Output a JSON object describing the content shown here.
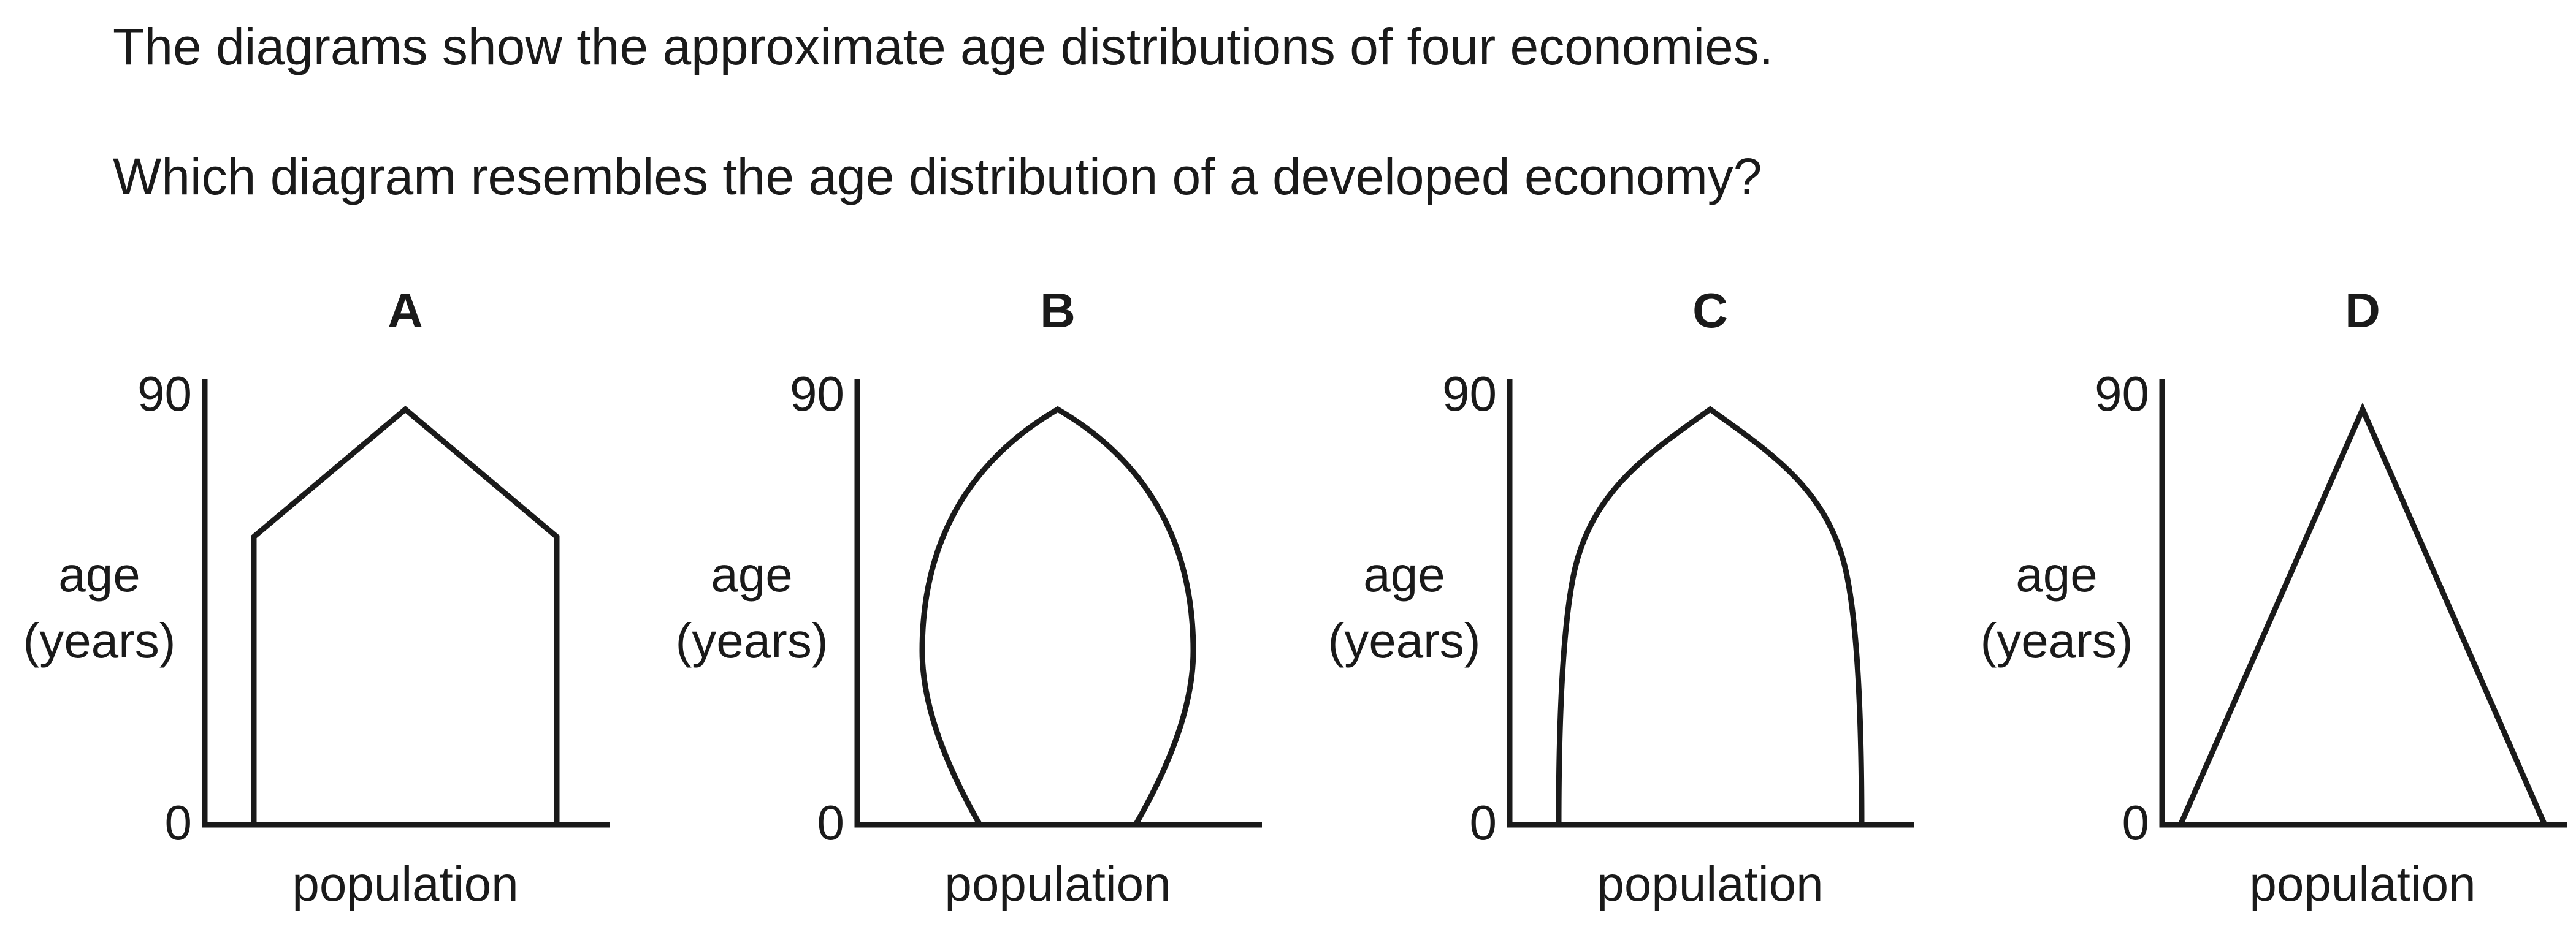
{
  "question": {
    "line1": "The diagrams show the approximate age distributions of four economies.",
    "line2": "Which diagram resembles the age distribution of a developed economy?"
  },
  "axes": {
    "ylabel_line1": "age",
    "ylabel_line2": "(years)",
    "y_min_label": "0",
    "y_max_label": "90",
    "xlabel": "population"
  },
  "options": [
    {
      "letter": "A",
      "shape": "house"
    },
    {
      "letter": "B",
      "shape": "lens"
    },
    {
      "letter": "C",
      "shape": "dome"
    },
    {
      "letter": "D",
      "shape": "triangle"
    }
  ],
  "colors": {
    "ink": "#1a1a1a",
    "background": "#ffffff"
  }
}
